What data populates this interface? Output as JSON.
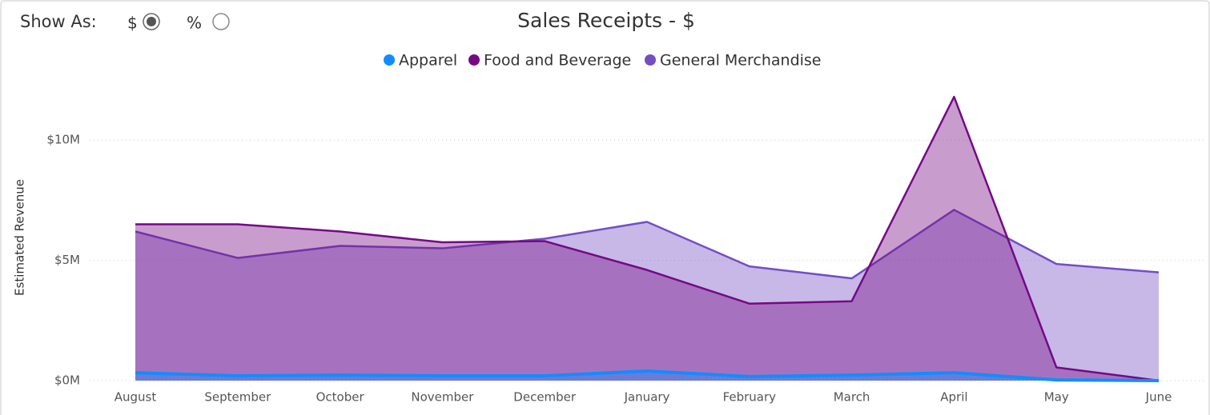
{
  "controls": {
    "label": "Show As:",
    "options": [
      {
        "label": "$",
        "selected": true
      },
      {
        "label": "%",
        "selected": false
      }
    ]
  },
  "chart_data": {
    "type": "area",
    "title": "Sales Receipts - $",
    "y_label": "Estimated Revenue",
    "categories": [
      "August",
      "September",
      "October",
      "November",
      "December",
      "January",
      "February",
      "March",
      "April",
      "May",
      "June"
    ],
    "series": [
      {
        "name": "Apparel",
        "color": "#118DFF",
        "values": [
          330000,
          200000,
          230000,
          200000,
          200000,
          400000,
          170000,
          230000,
          330000,
          30000,
          0
        ]
      },
      {
        "name": "Food and Beverage",
        "color": "#750985",
        "values": [
          6500000,
          6500000,
          6200000,
          5750000,
          5800000,
          4600000,
          3200000,
          3300000,
          11800000,
          550000,
          0
        ]
      },
      {
        "name": "General Merchandise",
        "color": "#744EC2",
        "values": [
          6200000,
          5100000,
          5600000,
          5500000,
          5900000,
          6600000,
          4750000,
          4250000,
          7100000,
          4850000,
          4500000
        ]
      }
    ],
    "ylim": [
      0,
      12500000
    ],
    "yticks": [
      {
        "value": 0,
        "label": "$0M"
      },
      {
        "value": 5000000,
        "label": "$5M"
      },
      {
        "value": 10000000,
        "label": "$10M"
      }
    ],
    "grid": true,
    "legend": "top"
  }
}
